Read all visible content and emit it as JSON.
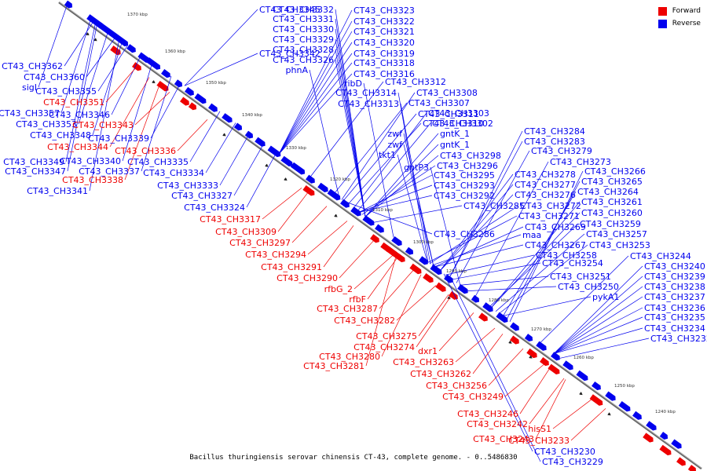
{
  "legend": [
    {
      "label": "Forward",
      "color": "#ee0000"
    },
    {
      "label": "Reverse",
      "color": "#0000ee"
    }
  ],
  "caption": "Bacillus thuringiensis serovar chinensis CT-43, complete genome. - 0..5486830",
  "colors": {
    "forward": "#ee0000",
    "reverse": "#0000ee",
    "backbone": "#666666"
  },
  "kbp_ticks": [
    "1370 kbp",
    "1360 kbp",
    "1350 kbp",
    "1340 kbp",
    "1330 kbp",
    "1320 kbp",
    "1310 kbp",
    "1300 kbp",
    "1290 kbp",
    "1280 kbp",
    "1270 kbp",
    "1260 kbp",
    "1250 kbp",
    "1240 kbp"
  ],
  "reverse_labels": [
    "CT43_CH3345",
    "CT43_CH3332",
    "CT43_CH3323",
    "CT43_CH3331",
    "CT43_CH3322",
    "CT43_CH3330",
    "CT43_CH3321",
    "CT43_CH3329",
    "CT43_CH3320",
    "CT43_CH3328",
    "CT43_CH3319",
    "CT43_CH3326",
    "CT43_CH3318",
    "CT43_CH3342",
    "phnA",
    "CT43_CH3316",
    "CT43_CH3362",
    "CT43_CH3360",
    "sigI",
    "CT43_CH3355",
    "ribD",
    "CT43_CH3312",
    "CT43_CH3314",
    "CT43_CH3308",
    "CT43_CH3313",
    "CT43_CH3307",
    "CT43_CH3357",
    "CT43_CH3346",
    "CT43_CH3311",
    "CT43_CH3303",
    "CT43_CH3353",
    "CT43_CH3310",
    "CT43_CH3302",
    "CT43_CH3348",
    "CT43_CH3339",
    "zwf",
    "gntK_1",
    "zwf",
    "gntK_1",
    "tkt1",
    "CT43_CH3298",
    "CT43_CH3349",
    "CT43_CH3340",
    "CT43_CH3335",
    "CT43_CH3347",
    "CT43_CH3337",
    "CT43_CH3334",
    "gntP3",
    "CT43_CH3296",
    "CT43_CH3295",
    "CT43_CH3341",
    "CT43_CH3333",
    "CT43_CH3293",
    "CT43_CH3327",
    "CT43_CH3292",
    "CT43_CH3324",
    "CT43_CH3285",
    "CT43_CH3286",
    "CT43_CH3284",
    "CT43_CH3283",
    "CT43_CH3279",
    "CT43_CH3273",
    "CT43_CH3278",
    "CT43_CH3266",
    "CT43_CH3277",
    "CT43_CH3265",
    "CT43_CH3276",
    "CT43_CH3264",
    "CT43_CH3272",
    "CT43_CH3261",
    "CT43_CH3271",
    "CT43_CH3260",
    "CT43_CH3269",
    "CT43_CH3259",
    "maa",
    "CT43_CH3257",
    "CT43_CH3267",
    "CT43_CH3253",
    "CT43_CH3258",
    "CT43_CH3244",
    "CT43_CH3254",
    "CT43_CH3240",
    "CT43_CH3251",
    "CT43_CH3239",
    "CT43_CH3250",
    "CT43_CH3238",
    "pykA1",
    "CT43_CH3237",
    "CT43_CH3236",
    "CT43_CH3235",
    "CT43_CH3234",
    "CT43_CH3232",
    "CT43_CH3230",
    "CT43_CH3229"
  ],
  "forward_labels": [
    "CT43_CH3351",
    "CT43_CH3343",
    "CT43_CH3344",
    "CT43_CH3336",
    "CT43_CH3338",
    "CT43_CH3317",
    "CT43_CH3309",
    "CT43_CH3297",
    "CT43_CH3294",
    "CT43_CH3291",
    "CT43_CH3290",
    "rfbG_2",
    "rfbF",
    "CT43_CH3287",
    "CT43_CH3282",
    "CT43_CH3275",
    "CT43_CH3274",
    "CT43_CH3280",
    "CT43_CH3281",
    "dxr1",
    "CT43_CH3263",
    "CT43_CH3262",
    "CT43_CH3256",
    "CT43_CH3249",
    "CT43_CH3246",
    "CT43_CH3242",
    "hisS1",
    "CT43_CH3243",
    "CT43_CH3233"
  ]
}
